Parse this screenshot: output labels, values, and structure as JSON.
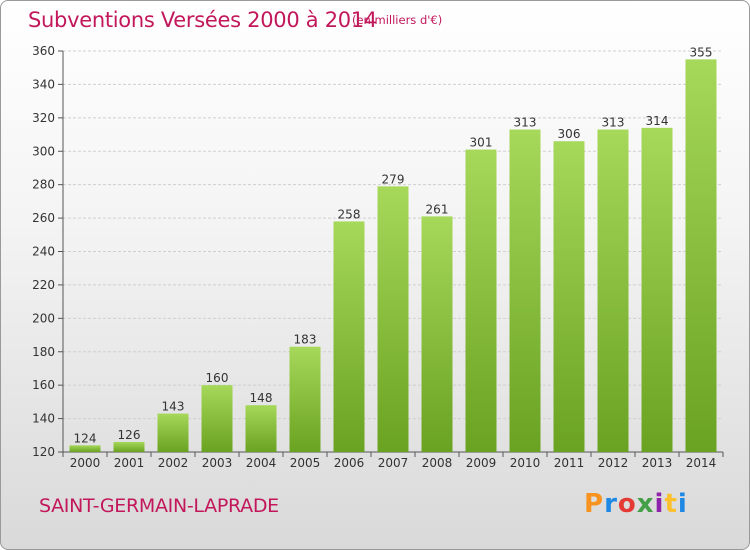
{
  "header": {
    "title": "Subventions Versées 2000 à 2014",
    "subtitle": "(en milliers d'€)"
  },
  "footer": {
    "city": "SAINT-GERMAIN-LAPRADE",
    "logo": "Proxiti"
  },
  "colors": {
    "title": "#c2185b",
    "bar_light": "#a6d85a",
    "bar_dark": "#6aa221",
    "grid": "#d0d0d0"
  },
  "chart_data": {
    "type": "bar",
    "categories": [
      "2000",
      "2001",
      "2002",
      "2003",
      "2004",
      "2005",
      "2006",
      "2007",
      "2008",
      "2009",
      "2010",
      "2011",
      "2012",
      "2013",
      "2014"
    ],
    "values": [
      124,
      126,
      143,
      160,
      148,
      183,
      258,
      279,
      261,
      301,
      313,
      306,
      313,
      314,
      355
    ],
    "title": "Subventions Versées 2000 à 2014",
    "ylim": [
      120,
      360
    ],
    "yticks": [
      120,
      140,
      160,
      180,
      200,
      220,
      240,
      260,
      280,
      300,
      320,
      340,
      360
    ],
    "grid": true,
    "data_labels": true
  }
}
